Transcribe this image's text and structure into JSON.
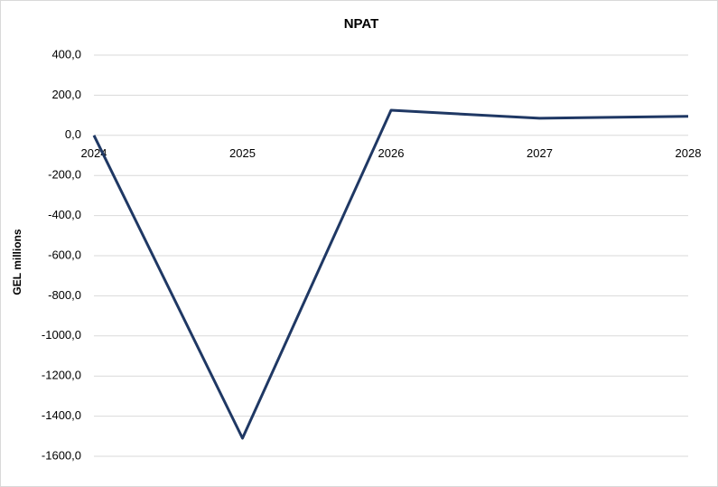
{
  "chart_data": {
    "type": "line",
    "title": "NPAT",
    "y_label": "GEL millions",
    "categories": [
      "2024",
      "2025",
      "2026",
      "2027",
      "2028"
    ],
    "series": [
      {
        "name": "NPAT",
        "color": "#1f3864",
        "values": [
          0,
          -1510,
          125,
          85,
          95
        ]
      }
    ],
    "ylim": [
      -1600,
      400
    ],
    "yticks": [
      {
        "value": 400,
        "label": "400,0"
      },
      {
        "value": 200,
        "label": "200,0"
      },
      {
        "value": 0,
        "label": "0,0"
      },
      {
        "value": -200,
        "label": "-200,0"
      },
      {
        "value": -400,
        "label": "-400,0"
      },
      {
        "value": -600,
        "label": "-600,0"
      },
      {
        "value": -800,
        "label": "-800,0"
      },
      {
        "value": -1000,
        "label": "-1000,0"
      },
      {
        "value": -1200,
        "label": "-1200,0"
      },
      {
        "value": -1400,
        "label": "-1400,0"
      },
      {
        "value": -1600,
        "label": "-1600,0"
      }
    ],
    "grid": true
  }
}
